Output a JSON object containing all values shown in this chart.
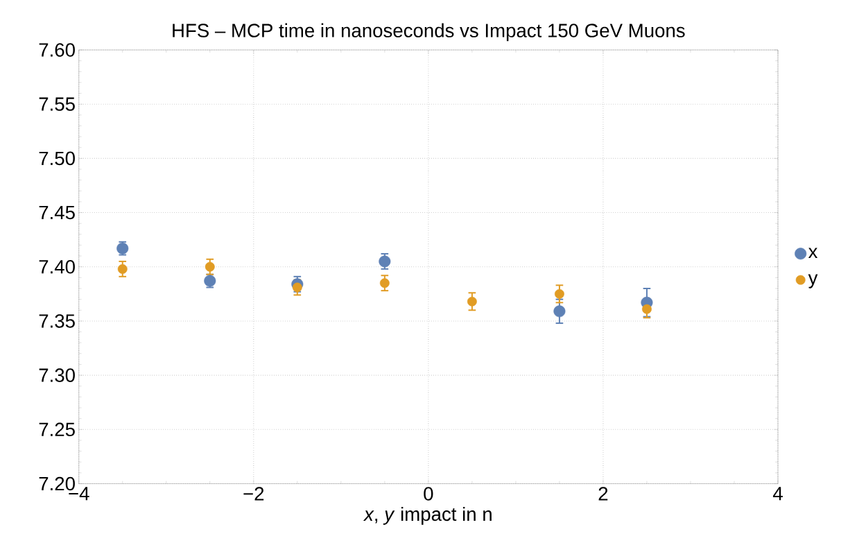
{
  "chart_data": {
    "type": "scatter",
    "title": "HFS – MCP time in nanoseconds vs Impact 150 GeV Muons",
    "xlabel": "*x*, *y*  impact in n",
    "x": [
      -3.5,
      -2.5,
      -1.5,
      -0.5,
      0.5,
      1.5,
      2.5
    ],
    "series": [
      {
        "name": "x",
        "color": "#5e81b5",
        "values": [
          7.417,
          7.387,
          7.384,
          7.405,
          null,
          7.359,
          7.367
        ],
        "errors": [
          0.006,
          0.006,
          0.007,
          0.007,
          null,
          0.011,
          0.013
        ]
      },
      {
        "name": "y",
        "color": "#e19c24",
        "values": [
          7.398,
          7.4,
          7.381,
          7.385,
          7.368,
          7.375,
          7.361
        ],
        "errors": [
          0.007,
          0.007,
          0.007,
          0.007,
          0.008,
          0.008,
          0.008
        ]
      }
    ],
    "xlim": [
      -4,
      4
    ],
    "ylim": [
      7.2,
      7.6
    ],
    "xticks": [
      {
        "value": -4,
        "label": "−4"
      },
      {
        "value": -2,
        "label": "−2"
      },
      0,
      2,
      4
    ],
    "yticks": [
      {
        "value": 7.2,
        "label": "7.20"
      },
      {
        "value": 7.25,
        "label": "7.25"
      },
      {
        "value": 7.3,
        "label": "7.30"
      },
      {
        "value": 7.35,
        "label": "7.35"
      },
      {
        "value": 7.4,
        "label": "7.40"
      },
      {
        "value": 7.45,
        "label": "7.45"
      },
      {
        "value": 7.5,
        "label": "7.50"
      },
      {
        "value": 7.55,
        "label": "7.55"
      },
      {
        "value": 7.6,
        "label": "7.60"
      }
    ],
    "grid": true,
    "legend": "right"
  }
}
